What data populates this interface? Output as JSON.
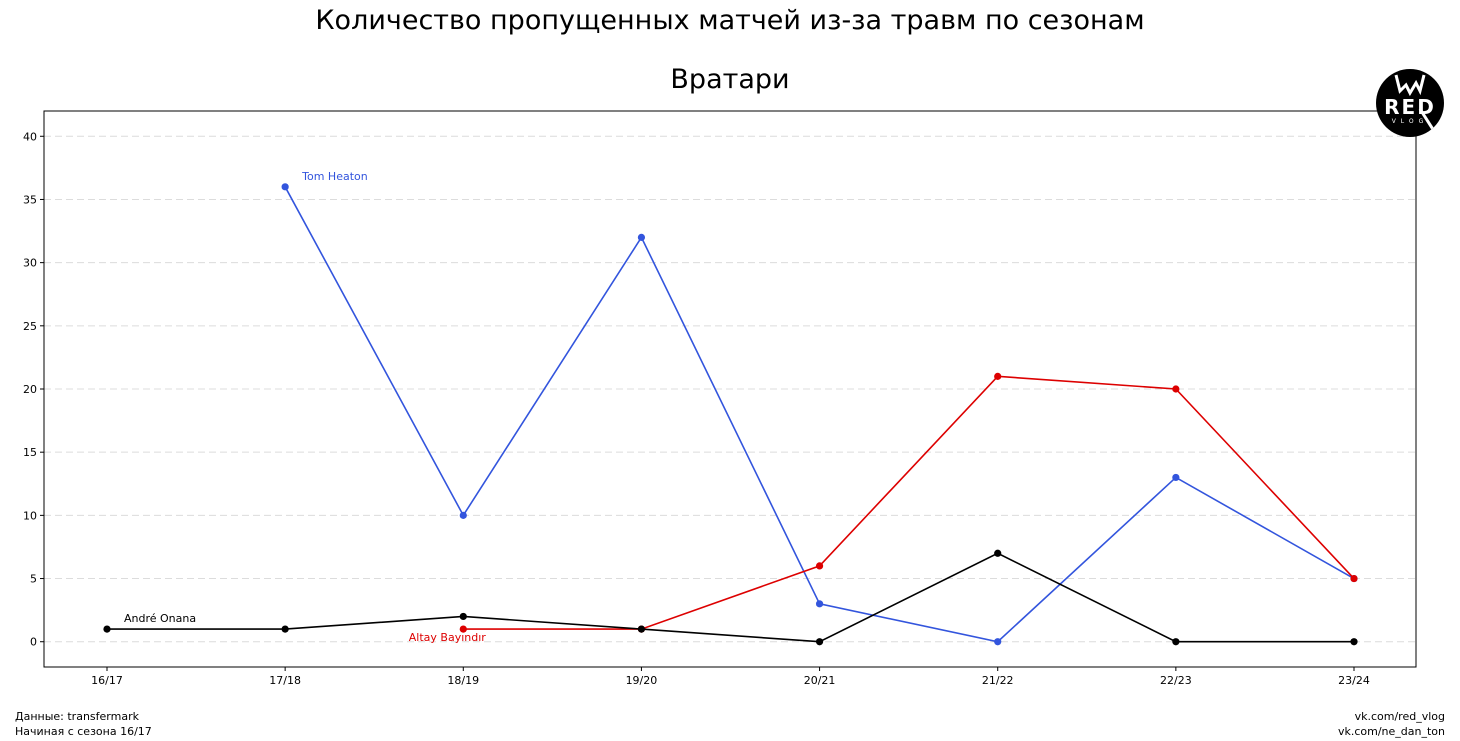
{
  "chart_data": {
    "type": "line",
    "title": "Количество пропущенных матчей из-за травм по сезонам",
    "subtitle": "Вратари",
    "xlabel": "",
    "ylabel": "",
    "categories": [
      "16/17",
      "17/18",
      "18/19",
      "19/20",
      "20/21",
      "21/22",
      "22/23",
      "23/24"
    ],
    "ylim": [
      -2,
      42
    ],
    "yticks": [
      0,
      5,
      10,
      15,
      20,
      25,
      30,
      35,
      40
    ],
    "grid": "horizontal dashed",
    "series": [
      {
        "name": "Tom Heaton",
        "color": "#3355dd",
        "values": [
          null,
          36,
          10,
          32,
          3,
          0,
          13,
          5
        ]
      },
      {
        "name": "Altay Bayındır",
        "color": "#dd0000",
        "values": [
          null,
          null,
          1,
          1,
          6,
          21,
          20,
          5
        ]
      },
      {
        "name": "André Onana",
        "color": "#000000",
        "values": [
          1,
          1,
          2,
          1,
          0,
          7,
          0,
          0
        ]
      }
    ]
  },
  "footer": {
    "source": "Данные: transfermark",
    "since": "Начиная с сезона 16/17",
    "link1": "vk.com/red_vlog",
    "link2": "vk.com/ne_dan_ton"
  },
  "logo": {
    "text": "RED",
    "subtext": "VLOG"
  }
}
